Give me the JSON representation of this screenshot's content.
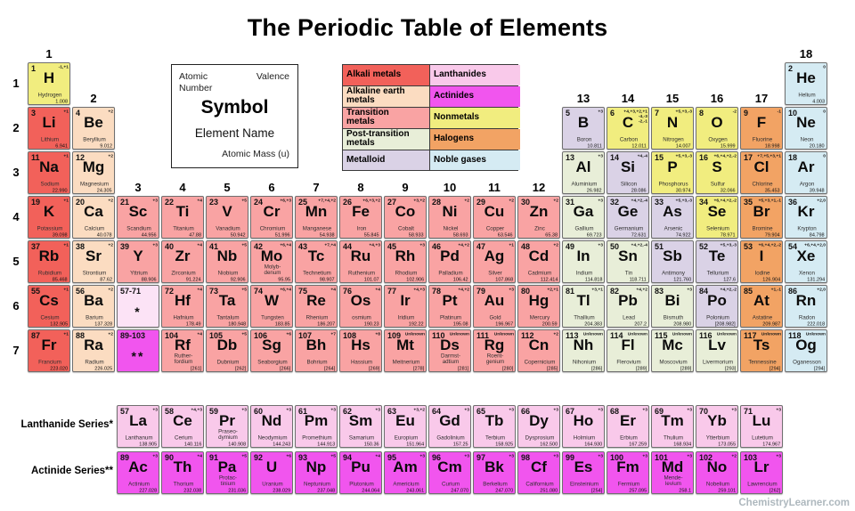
{
  "title": "The Periodic Table of Elements",
  "footer": "ChemistryLearner.com",
  "key": {
    "atomic_number": "Atomic Number",
    "valence": "Valence",
    "symbol": "Symbol",
    "element_name": "Element Name",
    "atomic_mass": "Atomic Mass (u)"
  },
  "series_labels": {
    "lanthanide": "Lanthanide Series*",
    "actinide": "Actinide Series**"
  },
  "colors": {
    "ak": "#f2615a",
    "ae": "#fbdcc1",
    "tm": "#f9a3a3",
    "pt": "#e8eed8",
    "md": "#dad2e6",
    "nm": "#f1ed7f",
    "hg": "#f2a364",
    "ng": "#d5ebf3",
    "la": "#f9c9ea",
    "ac": "#f155ee",
    "lp": "#fce3f6"
  },
  "legend": {
    "left": [
      {
        "label": "Alkali metals",
        "cat": "ak"
      },
      {
        "label": "Alkaline earth\nmetals",
        "cat": "ae"
      },
      {
        "label": "Transition\nmetals",
        "cat": "tm"
      },
      {
        "label": "Post-transition\nmetals",
        "cat": "pt"
      },
      {
        "label": "Metalloid",
        "cat": "md"
      }
    ],
    "right": [
      {
        "label": "Lanthanides",
        "cat": "la"
      },
      {
        "label": "Actinides",
        "cat": "ac"
      },
      {
        "label": "Nonmetals",
        "cat": "nm"
      },
      {
        "label": "Halogens",
        "cat": "hg"
      },
      {
        "label": "Noble gases",
        "cat": "ng"
      }
    ]
  },
  "group_labels": [
    [
      "1",
      1,
      1
    ],
    [
      "2",
      2,
      2
    ],
    [
      "3",
      3,
      4
    ],
    [
      "4",
      4,
      4
    ],
    [
      "5",
      5,
      4
    ],
    [
      "6",
      6,
      4
    ],
    [
      "7",
      7,
      4
    ],
    [
      "8",
      8,
      4
    ],
    [
      "9",
      9,
      4
    ],
    [
      "10",
      10,
      4
    ],
    [
      "11",
      11,
      4
    ],
    [
      "12",
      12,
      4
    ],
    [
      "13",
      13,
      2
    ],
    [
      "14",
      14,
      2
    ],
    [
      "15",
      15,
      2
    ],
    [
      "16",
      16,
      2
    ],
    [
      "17",
      17,
      2
    ],
    [
      "18",
      18,
      1
    ]
  ],
  "period_labels": [
    "1",
    "2",
    "3",
    "4",
    "5",
    "6",
    "7"
  ],
  "elements": [
    [
      1,
      "H",
      "Hydrogen",
      "1.008",
      "-1,+1",
      "nm",
      1,
      1
    ],
    [
      2,
      "He",
      "Helium",
      "4.003",
      "0",
      "ng",
      1,
      18
    ],
    [
      3,
      "Li",
      "Lithium",
      "6.941",
      "+1",
      "ak",
      2,
      1
    ],
    [
      4,
      "Be",
      "Beryllium",
      "9.012",
      "+2",
      "ae",
      2,
      2
    ],
    [
      5,
      "B",
      "Boron",
      "10.811",
      "+3",
      "md",
      2,
      13
    ],
    [
      6,
      "C",
      "Carbon",
      "12.011",
      "+4,+3,+2,+1\n-4,-3\n-2,-1",
      "nm",
      2,
      14
    ],
    [
      7,
      "N",
      "Nitrogen",
      "14.007",
      "+5,+3,-3",
      "nm",
      2,
      15
    ],
    [
      8,
      "O",
      "Oxygen",
      "15.999",
      "-2",
      "nm",
      2,
      16
    ],
    [
      9,
      "F",
      "Fluorine",
      "18.998",
      "-1",
      "hg",
      2,
      17
    ],
    [
      10,
      "Ne",
      "Neon",
      "20.180",
      "0",
      "ng",
      2,
      18
    ],
    [
      11,
      "Na",
      "Sodium",
      "22.990",
      "+1",
      "ak",
      3,
      1
    ],
    [
      12,
      "Mg",
      "Magnesium",
      "24.305",
      "+2",
      "ae",
      3,
      2
    ],
    [
      13,
      "Al",
      "Aluminium",
      "26.982",
      "+3",
      "pt",
      3,
      13
    ],
    [
      14,
      "Si",
      "Silicon",
      "28.086",
      "+4,-4",
      "md",
      3,
      14
    ],
    [
      15,
      "P",
      "Phosphorus",
      "30.974",
      "+5,+3,-3",
      "nm",
      3,
      15
    ],
    [
      16,
      "S",
      "Sulfur",
      "32.066",
      "+6,+4,+2,-2",
      "nm",
      3,
      16
    ],
    [
      17,
      "Cl",
      "Chlorine",
      "35.453",
      "+7,+5,+3,+1",
      "hg",
      3,
      17
    ],
    [
      18,
      "Ar",
      "Argon",
      "39.948",
      "0",
      "ng",
      3,
      18
    ],
    [
      19,
      "K",
      "Potassium",
      "39.098",
      "+1",
      "ak",
      4,
      1
    ],
    [
      20,
      "Ca",
      "Calcium",
      "40.078",
      "+2",
      "ae",
      4,
      2
    ],
    [
      21,
      "Sc",
      "Scandium",
      "44.956",
      "+3",
      "tm",
      4,
      3
    ],
    [
      22,
      "Ti",
      "Titanium",
      "47.88",
      "+4",
      "tm",
      4,
      4
    ],
    [
      23,
      "V",
      "Vanadium",
      "50.942",
      "+5",
      "tm",
      4,
      5
    ],
    [
      24,
      "Cr",
      "Chromium",
      "51.996",
      "+6,+3",
      "tm",
      4,
      6
    ],
    [
      25,
      "Mn",
      "Manganese",
      "54.938",
      "+7,+4,+2",
      "tm",
      4,
      7
    ],
    [
      26,
      "Fe",
      "Iron",
      "55.845",
      "+6,+3,+2",
      "tm",
      4,
      8
    ],
    [
      27,
      "Co",
      "Cobalt",
      "58.933",
      "+3,+2",
      "tm",
      4,
      9
    ],
    [
      28,
      "Ni",
      "Nickel",
      "58.693",
      "+2",
      "tm",
      4,
      10
    ],
    [
      29,
      "Cu",
      "Copper",
      "63.546",
      "+2",
      "tm",
      4,
      11
    ],
    [
      30,
      "Zn",
      "Zinc",
      "65.38",
      "+2",
      "tm",
      4,
      12
    ],
    [
      31,
      "Ga",
      "Gallium",
      "69.723",
      "+3",
      "pt",
      4,
      13
    ],
    [
      32,
      "Ge",
      "Germanium",
      "72.631",
      "+4,+2,-4",
      "md",
      4,
      14
    ],
    [
      33,
      "As",
      "Arsenic",
      "74.922",
      "+5,+3,-3",
      "md",
      4,
      15
    ],
    [
      34,
      "Se",
      "Selenium",
      "78.971",
      "+6,+4,+2,-2",
      "nm",
      4,
      16
    ],
    [
      35,
      "Br",
      "Bromine",
      "79.904",
      "+5,+3,+1,-1",
      "hg",
      4,
      17
    ],
    [
      36,
      "Kr",
      "Krypton",
      "84.798",
      "+2,0",
      "ng",
      4,
      18
    ],
    [
      37,
      "Rb",
      "Rubidium",
      "85.468",
      "+1",
      "ak",
      5,
      1
    ],
    [
      38,
      "Sr",
      "Strontium",
      "87.62",
      "+2",
      "ae",
      5,
      2
    ],
    [
      39,
      "Y",
      "Yttrium",
      "88.906",
      "+3",
      "tm",
      5,
      3
    ],
    [
      40,
      "Zr",
      "Zirconium",
      "91.224",
      "+4",
      "tm",
      5,
      4
    ],
    [
      41,
      "Nb",
      "Niobium",
      "92.906",
      "+5",
      "tm",
      5,
      5
    ],
    [
      42,
      "Mo",
      "Molyb-\ndenum",
      "95.95",
      "+6,+4",
      "tm",
      5,
      6
    ],
    [
      43,
      "Tc",
      "Technetium",
      "98.907",
      "+7,+4",
      "tm",
      5,
      7
    ],
    [
      44,
      "Ru",
      "Ruthenium",
      "101.07",
      "+4,+3",
      "tm",
      5,
      8
    ],
    [
      45,
      "Rh",
      "Rhodium",
      "102.906",
      "+3",
      "tm",
      5,
      9
    ],
    [
      46,
      "Pd",
      "Palladium",
      "106.42",
      "+4,+2",
      "tm",
      5,
      10
    ],
    [
      47,
      "Ag",
      "Silver",
      "107.868",
      "+1",
      "tm",
      5,
      11
    ],
    [
      48,
      "Cd",
      "Cadmium",
      "112.414",
      "+2",
      "tm",
      5,
      12
    ],
    [
      49,
      "In",
      "Indium",
      "114.818",
      "+3",
      "pt",
      5,
      13
    ],
    [
      50,
      "Sn",
      "Tin",
      "118.711",
      "+4,+2,-4",
      "pt",
      5,
      14
    ],
    [
      51,
      "Sb",
      "Antimony",
      "121.760",
      "",
      "md",
      5,
      15
    ],
    [
      52,
      "Te",
      "Tellurium",
      "127.6",
      "+5,+3,-3",
      "md",
      5,
      16
    ],
    [
      53,
      "I",
      "Iodine",
      "126.904",
      "+6,+4,+2,-2",
      "hg",
      5,
      17
    ],
    [
      54,
      "Xe",
      "Xenon",
      "131.294",
      "+6,+4,+2,0",
      "ng",
      5,
      18
    ],
    [
      55,
      "Cs",
      "Cesium",
      "132.905",
      "+1",
      "ak",
      6,
      1
    ],
    [
      56,
      "Ba",
      "Barium",
      "137.328",
      "+2",
      "ae",
      6,
      2
    ],
    [
      "57-71",
      "*",
      "",
      "",
      "",
      "lp",
      6,
      3
    ],
    [
      72,
      "Hf",
      "Hafnium",
      "178.49",
      "+4",
      "tm",
      6,
      4
    ],
    [
      73,
      "Ta",
      "Tantalum",
      "180.948",
      "+5",
      "tm",
      6,
      5
    ],
    [
      74,
      "W",
      "Tungsten",
      "183.85",
      "+6,+4",
      "tm",
      6,
      6
    ],
    [
      75,
      "Re",
      "Rhenium",
      "186.207",
      "+4",
      "tm",
      6,
      7
    ],
    [
      76,
      "Os",
      "osmium",
      "190.23",
      "+4",
      "tm",
      6,
      8
    ],
    [
      77,
      "Ir",
      "Iridium",
      "192.22",
      "+4,+3",
      "tm",
      6,
      9
    ],
    [
      78,
      "Pt",
      "Platinum",
      "195.08",
      "+4,+2",
      "tm",
      6,
      10
    ],
    [
      79,
      "Au",
      "Gold",
      "196.967",
      "+3",
      "tm",
      6,
      11
    ],
    [
      80,
      "Hg",
      "Mercury",
      "200.59",
      "+2,+1",
      "tm",
      6,
      12
    ],
    [
      81,
      "Tl",
      "Thallium",
      "204.383",
      "+3,+1",
      "pt",
      6,
      13
    ],
    [
      82,
      "Pb",
      "Lead",
      "207.2",
      "+4,+2",
      "pt",
      6,
      14
    ],
    [
      83,
      "Bi",
      "Bismuth",
      "208.980",
      "+3",
      "pt",
      6,
      15
    ],
    [
      84,
      "Po",
      "Polonium",
      "[208.982]",
      "+4,+2,-2",
      "md",
      6,
      16
    ],
    [
      85,
      "At",
      "Astatine",
      "209.987",
      "+1,-1",
      "hg",
      6,
      17
    ],
    [
      86,
      "Rn",
      "Radon",
      "222.018",
      "+2,0",
      "ng",
      6,
      18
    ],
    [
      87,
      "Fr",
      "Francium",
      "223.020",
      "+1",
      "ak",
      7,
      1
    ],
    [
      88,
      "Ra",
      "Radium",
      "226.025",
      "+2",
      "ae",
      7,
      2
    ],
    [
      "89-103",
      "**",
      "",
      "",
      "",
      "ac",
      7,
      3
    ],
    [
      104,
      "Rf",
      "Ruther-\nfordium",
      "[261]",
      "+4",
      "tm",
      7,
      4
    ],
    [
      105,
      "Db",
      "Dubnium",
      "[262]",
      "+5",
      "tm",
      7,
      5
    ],
    [
      106,
      "Sg",
      "Seaborgium",
      "[266]",
      "+6",
      "tm",
      7,
      6
    ],
    [
      107,
      "Bh",
      "Bohrium",
      "[264]",
      "+7",
      "tm",
      7,
      7
    ],
    [
      108,
      "Hs",
      "Hassium",
      "[269]",
      "+8",
      "tm",
      7,
      8
    ],
    [
      109,
      "Mt",
      "Meitnerium",
      "[278]",
      "Unknown",
      "tm",
      7,
      9
    ],
    [
      110,
      "Ds",
      "Darmst-\nadtium",
      "[281]",
      "Unknown",
      "tm",
      7,
      10
    ],
    [
      111,
      "Rg",
      "Roent-\ngenium",
      "[280]",
      "Unknown",
      "tm",
      7,
      11
    ],
    [
      112,
      "Cn",
      "Copernicium",
      "[285]",
      "+2",
      "tm",
      7,
      12
    ],
    [
      113,
      "Nh",
      "Nihonium",
      "[286]",
      "Unknown",
      "pt",
      7,
      13
    ],
    [
      114,
      "Fl",
      "Flerovium",
      "[289]",
      "Unknown",
      "pt",
      7,
      14
    ],
    [
      115,
      "Mc",
      "Moscovium",
      "[289]",
      "Unknown",
      "pt",
      7,
      15
    ],
    [
      116,
      "Lv",
      "Livermorium",
      "[293]",
      "Unknown",
      "pt",
      7,
      16
    ],
    [
      117,
      "Ts",
      "Tennessine",
      "[294]",
      "Unknown",
      "hg",
      7,
      17
    ],
    [
      118,
      "Og",
      "Oganesson",
      "[294]",
      "Unknown",
      "ng",
      7,
      18
    ],
    [
      57,
      "La",
      "Lanthanum",
      "138.905",
      "+3",
      "la",
      8,
      3
    ],
    [
      58,
      "Ce",
      "Cerium",
      "140.116",
      "+4,+3",
      "la",
      8,
      4
    ],
    [
      59,
      "Pr",
      "Praseo-\ndymium",
      "140.908",
      "+3",
      "la",
      8,
      5
    ],
    [
      60,
      "Nd",
      "Neodymium",
      "144.243",
      "+3",
      "la",
      8,
      6
    ],
    [
      61,
      "Pm",
      "Promethium",
      "144.913",
      "+3",
      "la",
      8,
      7
    ],
    [
      62,
      "Sm",
      "Samarium",
      "150.36",
      "+3",
      "la",
      8,
      8
    ],
    [
      63,
      "Eu",
      "Europium",
      "151.964",
      "+3,+2",
      "la",
      8,
      9
    ],
    [
      64,
      "Gd",
      "Gadolinium",
      "157.25",
      "+3",
      "la",
      8,
      10
    ],
    [
      65,
      "Tb",
      "Terbium",
      "158.925",
      "+3",
      "la",
      8,
      11
    ],
    [
      66,
      "Dy",
      "Dysprosium",
      "162.500",
      "+3",
      "la",
      8,
      12
    ],
    [
      67,
      "Ho",
      "Holmium",
      "164.930",
      "+3",
      "la",
      8,
      13
    ],
    [
      68,
      "Er",
      "Erbium",
      "167.259",
      "+3",
      "la",
      8,
      14
    ],
    [
      69,
      "Tm",
      "Thulium",
      "168.934",
      "+3",
      "la",
      8,
      15
    ],
    [
      70,
      "Yb",
      "Ytterbium",
      "173.055",
      "+3",
      "la",
      8,
      16
    ],
    [
      71,
      "Lu",
      "Lutetium",
      "174.967",
      "+3",
      "la",
      8,
      17
    ],
    [
      89,
      "Ac",
      "Actinium",
      "227.028",
      "+3",
      "ac",
      9,
      3
    ],
    [
      90,
      "Th",
      "Thorium",
      "232.038",
      "+4",
      "ac",
      9,
      4
    ],
    [
      91,
      "Pa",
      "Protac-\ntinium",
      "231.036",
      "+5",
      "ac",
      9,
      5
    ],
    [
      92,
      "U",
      "Uranium",
      "238.029",
      "+6",
      "ac",
      9,
      6
    ],
    [
      93,
      "Np",
      "Neptunium",
      "237.048",
      "+5",
      "ac",
      9,
      7
    ],
    [
      94,
      "Pu",
      "Plutonium",
      "244.064",
      "+4",
      "ac",
      9,
      8
    ],
    [
      95,
      "Am",
      "Americium",
      "243.061",
      "+3",
      "ac",
      9,
      9
    ],
    [
      96,
      "Cm",
      "Curium",
      "247.070",
      "+3",
      "ac",
      9,
      10
    ],
    [
      97,
      "Bk",
      "Berkelium",
      "247.070",
      "+3",
      "ac",
      9,
      11
    ],
    [
      98,
      "Cf",
      "Californium",
      "251.080",
      "+3",
      "ac",
      9,
      12
    ],
    [
      99,
      "Es",
      "Einsteinium",
      "[254]",
      "+3",
      "ac",
      9,
      13
    ],
    [
      100,
      "Fm",
      "Fermium",
      "257.095",
      "+3",
      "ac",
      9,
      14
    ],
    [
      101,
      "Md",
      "Mende-\nlevium",
      "258.1",
      "+3",
      "ac",
      9,
      15
    ],
    [
      102,
      "No",
      "Nobelium",
      "259.101",
      "+2",
      "ac",
      9,
      16
    ],
    [
      103,
      "Lr",
      "Lawrencium",
      "[262]",
      "+3",
      "ac",
      9,
      17
    ]
  ]
}
